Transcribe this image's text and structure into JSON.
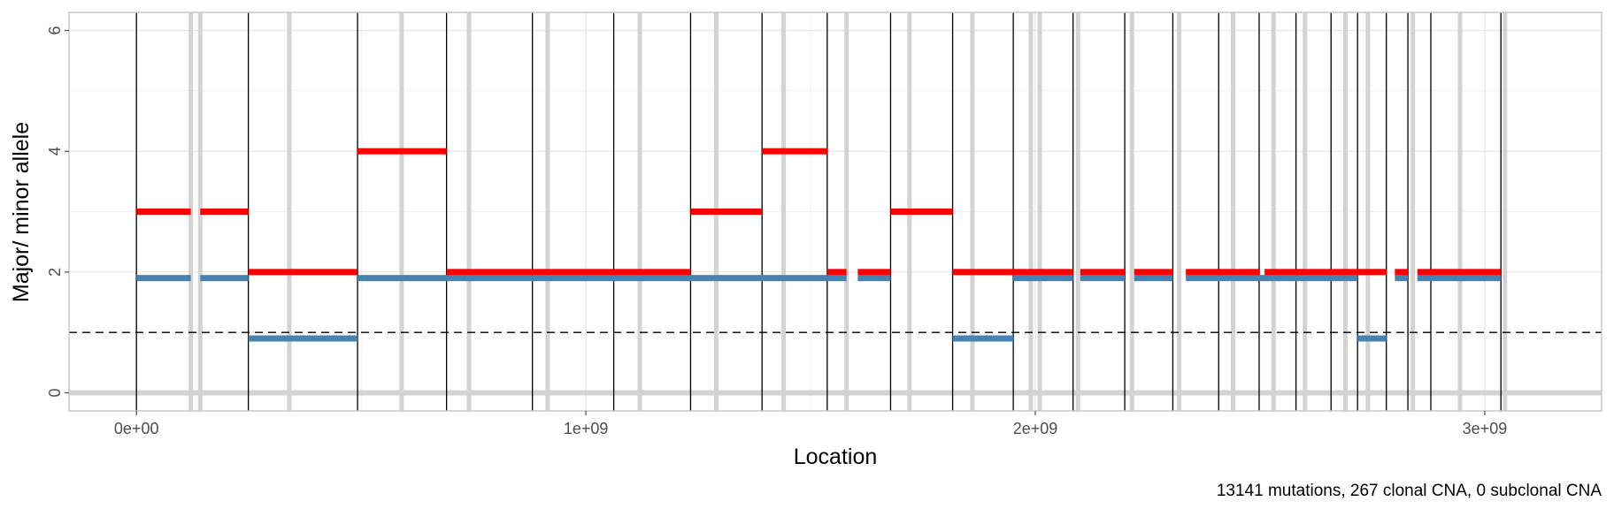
{
  "chart_data": {
    "type": "scatter",
    "title": "",
    "xlabel": "Location",
    "ylabel": "Major/ minor allele",
    "caption": "13141 mutations, 267 clonal CNA, 0 subclonal CNA",
    "xlim": [
      -150000000,
      3260000000
    ],
    "ylim": [
      -0.3,
      6.3
    ],
    "x_ticks": [
      0,
      1000000000,
      2000000000,
      3000000000
    ],
    "x_tick_labels": [
      "0e+00",
      "1e+09",
      "2e+09",
      "3e+09"
    ],
    "y_ticks": [
      0,
      2,
      4,
      6
    ],
    "y_tick_labels": [
      "0",
      "2",
      "4",
      "6"
    ],
    "grid": true,
    "reference_line": {
      "y": 1,
      "style": "dashed"
    },
    "colors": {
      "major": "#ff0000",
      "minor": "#4682b4",
      "chromosome_boundary": "#000000",
      "gap": "#d3d3d3",
      "grid": "#e5e5e5",
      "panel_border": "#c8c8c8"
    },
    "chromosome_boundaries": [
      0,
      249000000,
      492000000,
      690000000,
      881000000,
      1062000000,
      1233000000,
      1392000000,
      1537000000,
      1678000000,
      1816000000,
      1951000000,
      2084000000,
      2199000000,
      2306000000,
      2408000000,
      2498000000,
      2580000000,
      2658000000,
      2717000000,
      2781000000,
      2829000000,
      2880000000,
      3036000000
    ],
    "gap_regions": [
      121000000,
      142000000,
      340000000,
      590000000,
      740000000,
      915000000,
      1120000000,
      1290000000,
      1440000000,
      1580000000,
      1720000000,
      1860000000,
      1990000000,
      2010000000,
      2095000000,
      2215000000,
      2320000000,
      2440000000,
      2530000000,
      2600000000,
      2690000000,
      2740000000,
      2840000000,
      2945000000,
      3045000000
    ],
    "series": [
      {
        "name": "",
        "color": "#ff0000",
        "segments": [
          {
            "x0": 0,
            "x1": 121000000,
            "y": 3
          },
          {
            "x0": 142000000,
            "x1": 249000000,
            "y": 3
          },
          {
            "x0": 249000000,
            "x1": 492000000,
            "y": 2
          },
          {
            "x0": 492000000,
            "x1": 690000000,
            "y": 4
          },
          {
            "x0": 690000000,
            "x1": 1233000000,
            "y": 2
          },
          {
            "x0": 1233000000,
            "x1": 1392000000,
            "y": 3
          },
          {
            "x0": 1392000000,
            "x1": 1537000000,
            "y": 4
          },
          {
            "x0": 1537000000,
            "x1": 1580000000,
            "y": 2
          },
          {
            "x0": 1605000000,
            "x1": 1678000000,
            "y": 2
          },
          {
            "x0": 1678000000,
            "x1": 1816000000,
            "y": 3
          },
          {
            "x0": 1816000000,
            "x1": 2084000000,
            "y": 2
          },
          {
            "x0": 2100000000,
            "x1": 2199000000,
            "y": 2
          },
          {
            "x0": 2220000000,
            "x1": 2306000000,
            "y": 2
          },
          {
            "x0": 2335000000,
            "x1": 2498000000,
            "y": 2
          },
          {
            "x0": 2510000000,
            "x1": 2781000000,
            "y": 2
          },
          {
            "x0": 2800000000,
            "x1": 2829000000,
            "y": 2
          },
          {
            "x0": 2850000000,
            "x1": 3036000000,
            "y": 2
          }
        ]
      },
      {
        "name": "",
        "color": "#4682b4",
        "segments": [
          {
            "x0": 0,
            "x1": 121000000,
            "y": 1.9
          },
          {
            "x0": 142000000,
            "x1": 249000000,
            "y": 1.9
          },
          {
            "x0": 249000000,
            "x1": 492000000,
            "y": 0.9
          },
          {
            "x0": 492000000,
            "x1": 1537000000,
            "y": 1.9
          },
          {
            "x0": 1537000000,
            "x1": 1580000000,
            "y": 1.9
          },
          {
            "x0": 1605000000,
            "x1": 1678000000,
            "y": 1.9
          },
          {
            "x0": 1816000000,
            "x1": 1951000000,
            "y": 0.9
          },
          {
            "x0": 1951000000,
            "x1": 2084000000,
            "y": 1.9
          },
          {
            "x0": 2100000000,
            "x1": 2199000000,
            "y": 1.9
          },
          {
            "x0": 2220000000,
            "x1": 2306000000,
            "y": 1.9
          },
          {
            "x0": 2335000000,
            "x1": 2717000000,
            "y": 1.9
          },
          {
            "x0": 2717000000,
            "x1": 2781000000,
            "y": 0.9
          },
          {
            "x0": 2800000000,
            "x1": 2829000000,
            "y": 1.9
          },
          {
            "x0": 2850000000,
            "x1": 3036000000,
            "y": 1.9
          }
        ]
      }
    ]
  }
}
